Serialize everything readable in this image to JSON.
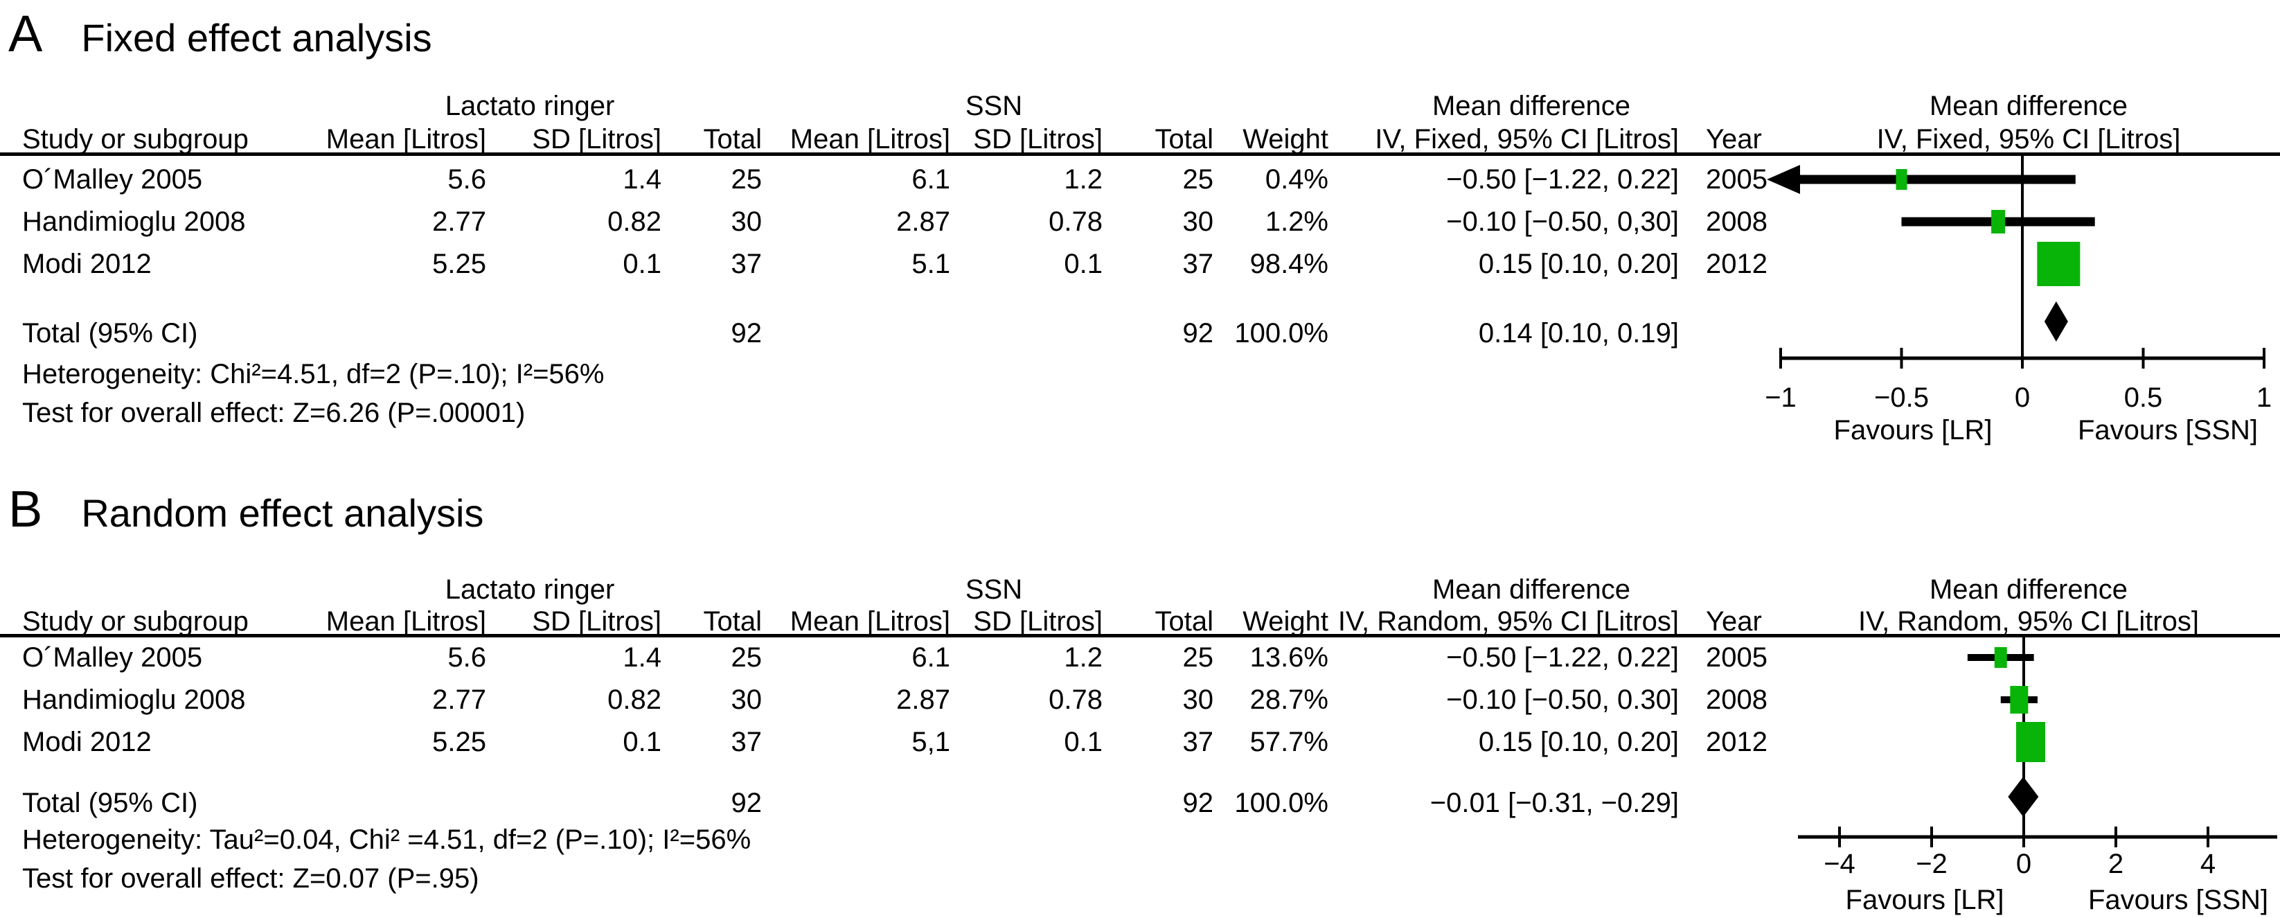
{
  "figure": {
    "background": "#ffffff",
    "text_color": "#000000",
    "line_color": "#000000",
    "marker_color": "#08b408"
  },
  "panels": [
    {
      "label": "A",
      "title": "Fixed effect analysis",
      "groups": {
        "lr": "Lactato ringer",
        "ssn": "SSN",
        "md": "Mean difference",
        "md_plot": "Mean difference"
      },
      "columns": {
        "study": "Study or subgroup",
        "mean_lr": "Mean [Litros]",
        "sd_lr": "SD [Litros]",
        "total_lr": "Total",
        "mean_ssn": "Mean [Litros]",
        "sd_ssn": "SD [Litros]",
        "total_ssn": "Total",
        "weight": "Weight",
        "effect": "IV, Fixed, 95% CI [Litros]",
        "year": "Year",
        "effect_plot": "IV, Fixed, 95% CI [Litros]"
      },
      "rows": [
        {
          "study": "O´Malley 2005",
          "lr_mean": "5.6",
          "lr_sd": "1.4",
          "lr_total": "25",
          "ssn_mean": "6.1",
          "ssn_sd": "1.2",
          "ssn_total": "25",
          "weight": "0.4%",
          "effect": "−0.50 [−1.22, 0.22]",
          "year": "2005"
        },
        {
          "study": "Handimioglu 2008",
          "lr_mean": "2.77",
          "lr_sd": "0.82",
          "lr_total": "30",
          "ssn_mean": "2.87",
          "ssn_sd": "0.78",
          "ssn_total": "30",
          "weight": "1.2%",
          "effect": "−0.10 [−0.50, 0,30]",
          "year": "2008"
        },
        {
          "study": "Modi 2012",
          "lr_mean": "5.25",
          "lr_sd": "0.1",
          "lr_total": "37",
          "ssn_mean": "5.1",
          "ssn_sd": "0.1",
          "ssn_total": "37",
          "weight": "98.4%",
          "effect": "0.15 [0.10, 0.20]",
          "year": "2012"
        }
      ],
      "total": {
        "label": "Total (95% CI)",
        "lr_total": "92",
        "ssn_total": "92",
        "weight": "100.0%",
        "effect": "0.14 [0.10, 0.19]"
      },
      "heterogeneity": "Heterogeneity: Chi²=4.51, df=2 (P=.10); I²=56%",
      "overall_effect": "Test for overall effect: Z=6.26 (P=.00001)"
    },
    {
      "label": "B",
      "title": "Random effect analysis",
      "groups": {
        "lr": "Lactato ringer",
        "ssn": "SSN",
        "md": "Mean difference",
        "md_plot": "Mean difference"
      },
      "columns": {
        "study": "Study or subgroup",
        "mean_lr": "Mean [Litros]",
        "sd_lr": "SD [Litros]",
        "total_lr": "Total",
        "mean_ssn": "Mean [Litros]",
        "sd_ssn": "SD [Litros]",
        "total_ssn": "Total",
        "weight": "Weight",
        "effect": "IV, Random, 95% CI [Litros]",
        "year": "Year",
        "effect_plot": "IV, Random, 95% CI [Litros]"
      },
      "rows": [
        {
          "study": "O´Malley 2005",
          "lr_mean": "5.6",
          "lr_sd": "1.4",
          "lr_total": "25",
          "ssn_mean": "6.1",
          "ssn_sd": "1.2",
          "ssn_total": "25",
          "weight": "13.6%",
          "effect": "−0.50 [−1.22, 0.22]",
          "year": "2005"
        },
        {
          "study": "Handimioglu 2008",
          "lr_mean": "2.77",
          "lr_sd": "0.82",
          "lr_total": "30",
          "ssn_mean": "2.87",
          "ssn_sd": "0.78",
          "ssn_total": "30",
          "weight": "28.7%",
          "effect": "−0.10 [−0.50, 0.30]",
          "year": "2008"
        },
        {
          "study": "Modi 2012",
          "lr_mean": "5.25",
          "lr_sd": "0.1",
          "lr_total": "37",
          "ssn_mean": "5,1",
          "ssn_sd": "0.1",
          "ssn_total": "37",
          "weight": "57.7%",
          "effect": "0.15 [0.10, 0.20]",
          "year": "2012"
        }
      ],
      "total": {
        "label": "Total (95% CI)",
        "lr_total": "92",
        "ssn_total": "92",
        "weight": "100.0%",
        "effect": "−0.01 [−0.31, −0.29]"
      },
      "heterogeneity": "Heterogeneity: Tau²=0.04, Chi² =4.51, df=2 (P=.10); I²=56%",
      "overall_effect": "Test for overall effect: Z=0.07 (P=.95)"
    }
  ],
  "chart_data": [
    {
      "type": "scatter",
      "variant": "forest-plot",
      "title": "A Fixed effect analysis",
      "model": "IV, Fixed, 95% CI [Litros]",
      "studies": [
        "O´Malley 2005",
        "Handimioglu 2008",
        "Modi 2012"
      ],
      "years": [
        2005,
        2008,
        2012
      ],
      "estimates": [
        -0.5,
        -0.1,
        0.15
      ],
      "ci_low": [
        -1.22,
        -0.5,
        0.1
      ],
      "ci_high": [
        0.22,
        0.3,
        0.2
      ],
      "weights_pct": [
        0.4,
        1.2,
        98.4
      ],
      "pooled": {
        "label": "Total (95% CI)",
        "estimate": 0.14,
        "ci_low": 0.1,
        "ci_high": 0.19,
        "weight_pct": 100.0
      },
      "xlim": [
        -1,
        1
      ],
      "xticks": [
        -1,
        -0.5,
        0,
        0.5,
        1
      ],
      "xtick_labels": [
        "−1",
        "−0.5",
        "0",
        "0.5",
        "1"
      ],
      "xlabel_left": "Favours [LR]",
      "xlabel_right": "Favours [SSN]",
      "grid": false,
      "legend": false
    },
    {
      "type": "scatter",
      "variant": "forest-plot",
      "title": "B Random effect analysis",
      "model": "IV, Random, 95% CI [Litros]",
      "studies": [
        "O´Malley 2005",
        "Handimioglu 2008",
        "Modi 2012"
      ],
      "years": [
        2005,
        2008,
        2012
      ],
      "estimates": [
        -0.5,
        -0.1,
        0.15
      ],
      "ci_low": [
        -1.22,
        -0.5,
        0.1
      ],
      "ci_high": [
        0.22,
        0.3,
        0.2
      ],
      "weights_pct": [
        13.6,
        28.7,
        57.7
      ],
      "pooled": {
        "label": "Total (95% CI)",
        "estimate": -0.01,
        "ci_low": -0.31,
        "ci_high": -0.29,
        "weight_pct": 100.0
      },
      "xlim": [
        -4,
        4
      ],
      "xticks": [
        -4,
        -2,
        0,
        2,
        4
      ],
      "xtick_labels": [
        "−4",
        "−2",
        "0",
        "2",
        "4"
      ],
      "xlabel_left": "Favours [LR]",
      "xlabel_right": "Favours [SSN]",
      "grid": false,
      "legend": false
    }
  ]
}
